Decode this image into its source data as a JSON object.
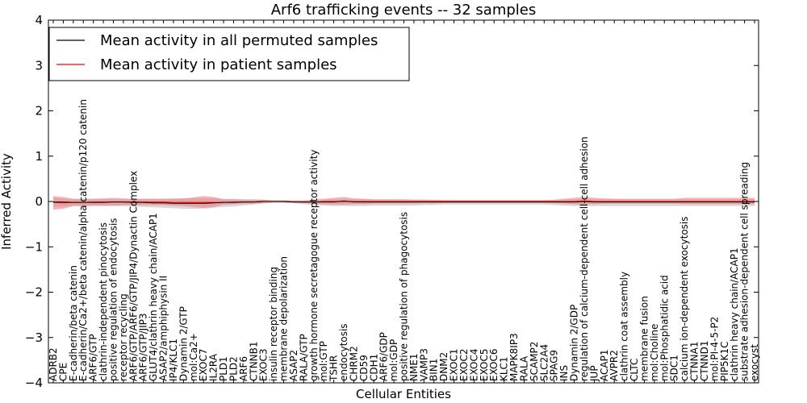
{
  "chart_data": {
    "type": "line",
    "title": "Arf6 trafficking events -- 32 samples",
    "xlabel": "Cellular Entities",
    "ylabel": "Inferred Activity",
    "ylim": [
      -4,
      4
    ],
    "yticks": [
      -4,
      -3,
      -2,
      -1,
      0,
      1,
      2,
      3,
      4
    ],
    "ytick_labels": [
      "−4",
      "−3",
      "−2",
      "−1",
      "0",
      "1",
      "2",
      "3",
      "4"
    ],
    "grid": false,
    "legend_position": "top-left",
    "colors": {
      "permuted": "#000000",
      "patient": "#ff0000",
      "permuted_band": "#c8c8c8",
      "patient_band": "#f08080"
    },
    "categories": [
      "ADRB2",
      "CPE",
      "E-cadherin/beta catenin",
      "E-cadherin/Ca2+/beta catenin/alpha catenin/p120 catenin",
      "ARF6/GTP",
      "clathrin-independent pinocytosis",
      "positive regulation of endocytosis",
      "receptor recycling",
      "ARF6/GTP/ARF6/GTP/JIP4/Dynactin Complex",
      "ARF6/GTP/JIP3",
      "GLUT4/clathrin heavy chain/ACAP1",
      "ASAP2/amphiphysin II",
      "IP4/KLC1",
      "Dynamin 2/GTP",
      "mol:Ca2+",
      "EXOC7",
      "IL2RA",
      "PLD1",
      "PLD2",
      "ARF6",
      "CTNNB1",
      "EXOC3",
      "insulin receptor binding",
      "membrane depolarization",
      "ASAP2",
      "RALA/GTP",
      "growth hormone secretagogue receptor activity",
      "mol:GTP",
      "TSHR",
      "endocytosis",
      "CHRM2",
      "CD59",
      "CDH1",
      "ARF6/GDP",
      "mol:GDP",
      "positive regulation of phagocytosis",
      "NME1",
      "VAMP3",
      "BIN1",
      "DNM2",
      "EXOC1",
      "EXOC2",
      "EXOC4",
      "EXOC5",
      "EXOC6",
      "KLC1",
      "MAPK8IP3",
      "RALA",
      "SCAMP2",
      "SLC2A4",
      "SPAG9",
      "INS",
      "Dynamin 2/GDP",
      "regulation of calcium-dependent cell-cell adhesion",
      "JUP",
      "ACAP1",
      "AVPR2",
      "clathrin coat assembly",
      "CLTC",
      "membrane fusion",
      "mol:Choline",
      "mol:Phosphatidic acid",
      "SDC1",
      "calcium ion-dependent exocytosis",
      "CTNNA1",
      "CTNND1",
      "mol:PI-4-5-P2",
      "PIP5K1C",
      "clathrin heavy chain/ACAP1",
      "substrate adhesion-dependent cell spreading",
      "exocyst"
    ],
    "series": [
      {
        "name": "Mean activity in all permuted samples",
        "values": [
          -0.01,
          -0.01,
          -0.02,
          -0.02,
          -0.02,
          -0.02,
          -0.01,
          -0.01,
          -0.02,
          -0.02,
          -0.03,
          -0.03,
          -0.04,
          -0.04,
          -0.04,
          -0.04,
          -0.03,
          -0.02,
          -0.02,
          -0.01,
          -0.01,
          0.0,
          0.0,
          0.0,
          -0.01,
          -0.01,
          -0.01,
          -0.01,
          -0.01,
          0.01,
          -0.01,
          -0.01,
          -0.01,
          -0.01,
          -0.01,
          -0.01,
          -0.01,
          -0.01,
          -0.01,
          -0.01,
          -0.01,
          -0.01,
          -0.01,
          -0.01,
          -0.01,
          -0.01,
          -0.01,
          -0.01,
          -0.01,
          -0.01,
          -0.01,
          -0.01,
          -0.01,
          0.0,
          -0.01,
          -0.01,
          -0.01,
          -0.01,
          -0.01,
          -0.01,
          -0.01,
          -0.01,
          -0.01,
          -0.01,
          -0.01,
          -0.01,
          -0.01,
          -0.01,
          -0.01,
          -0.01,
          -0.01
        ],
        "band_upper": [
          0.08,
          0.06,
          0.05,
          0.05,
          0.05,
          0.05,
          0.05,
          0.05,
          0.05,
          0.06,
          0.06,
          0.06,
          0.07,
          0.07,
          0.07,
          0.07,
          0.07,
          0.06,
          0.06,
          0.05,
          0.05,
          0.04,
          0.03,
          0.03,
          0.03,
          0.03,
          0.04,
          0.04,
          0.05,
          0.05,
          0.05,
          0.05,
          0.04,
          0.04,
          0.04,
          0.04,
          0.04,
          0.04,
          0.03,
          0.03,
          0.03,
          0.03,
          0.03,
          0.03,
          0.03,
          0.03,
          0.03,
          0.03,
          0.03,
          0.03,
          0.03,
          0.04,
          0.05,
          0.06,
          0.05,
          0.05,
          0.05,
          0.05,
          0.05,
          0.05,
          0.05,
          0.05,
          0.05,
          0.05,
          0.05,
          0.05,
          0.05,
          0.05,
          0.05,
          0.05,
          0.05
        ],
        "band_lower": [
          -0.12,
          -0.11,
          -0.1,
          -0.1,
          -0.1,
          -0.1,
          -0.1,
          -0.1,
          -0.11,
          -0.12,
          -0.13,
          -0.14,
          -0.15,
          -0.16,
          -0.16,
          -0.16,
          -0.14,
          -0.12,
          -0.11,
          -0.09,
          -0.07,
          -0.04,
          -0.03,
          -0.03,
          -0.04,
          -0.06,
          -0.08,
          -0.09,
          -0.1,
          -0.1,
          -0.1,
          -0.1,
          -0.09,
          -0.09,
          -0.09,
          -0.09,
          -0.09,
          -0.08,
          -0.08,
          -0.07,
          -0.07,
          -0.07,
          -0.07,
          -0.07,
          -0.07,
          -0.07,
          -0.07,
          -0.07,
          -0.07,
          -0.07,
          -0.08,
          -0.09,
          -0.1,
          -0.1,
          -0.1,
          -0.1,
          -0.1,
          -0.1,
          -0.1,
          -0.1,
          -0.1,
          -0.1,
          -0.1,
          -0.1,
          -0.1,
          -0.1,
          -0.1,
          -0.1,
          -0.1,
          -0.1,
          -0.1
        ]
      },
      {
        "name": "Mean activity in patient samples",
        "values": [
          -0.02,
          -0.03,
          -0.02,
          -0.02,
          -0.01,
          -0.01,
          -0.01,
          -0.01,
          -0.01,
          -0.01,
          -0.01,
          -0.01,
          -0.02,
          -0.02,
          -0.02,
          -0.02,
          -0.02,
          -0.02,
          -0.01,
          -0.01,
          -0.01,
          0.0,
          0.0,
          0.0,
          -0.01,
          -0.01,
          -0.01,
          0.0,
          0.0,
          0.0,
          0.0,
          0.0,
          0.0,
          0.0,
          0.0,
          0.0,
          0.0,
          0.0,
          0.0,
          0.0,
          0.0,
          0.0,
          0.0,
          0.0,
          0.0,
          0.0,
          0.0,
          0.0,
          0.0,
          0.0,
          0.0,
          0.0,
          0.0,
          0.01,
          0.0,
          0.0,
          0.0,
          0.0,
          0.0,
          0.0,
          0.0,
          0.0,
          0.0,
          0.0,
          0.0,
          0.0,
          0.0,
          0.0,
          0.0,
          0.0,
          0.0
        ],
        "band_upper": [
          0.12,
          0.1,
          0.06,
          0.06,
          0.06,
          0.07,
          0.08,
          0.07,
          0.06,
          0.06,
          0.06,
          0.06,
          0.06,
          0.07,
          0.09,
          0.12,
          0.1,
          0.05,
          0.05,
          0.04,
          0.04,
          0.04,
          0.02,
          0.02,
          0.02,
          0.02,
          0.04,
          0.06,
          0.08,
          0.1,
          0.07,
          0.06,
          0.05,
          0.05,
          0.05,
          0.05,
          0.04,
          0.04,
          0.04,
          0.03,
          0.03,
          0.03,
          0.03,
          0.03,
          0.03,
          0.03,
          0.03,
          0.03,
          0.03,
          0.03,
          0.04,
          0.06,
          0.08,
          0.1,
          0.08,
          0.07,
          0.06,
          0.06,
          0.06,
          0.06,
          0.06,
          0.06,
          0.06,
          0.08,
          0.08,
          0.08,
          0.08,
          0.08,
          0.08,
          0.08,
          0.08
        ],
        "band_lower": [
          -0.18,
          -0.16,
          -0.1,
          -0.1,
          -0.09,
          -0.09,
          -0.09,
          -0.08,
          -0.08,
          -0.08,
          -0.08,
          -0.08,
          -0.09,
          -0.1,
          -0.12,
          -0.14,
          -0.12,
          -0.07,
          -0.06,
          -0.05,
          -0.05,
          -0.04,
          -0.02,
          -0.02,
          -0.02,
          -0.03,
          -0.05,
          -0.06,
          -0.07,
          -0.07,
          -0.06,
          -0.06,
          -0.05,
          -0.05,
          -0.05,
          -0.05,
          -0.05,
          -0.04,
          -0.04,
          -0.03,
          -0.03,
          -0.03,
          -0.03,
          -0.03,
          -0.03,
          -0.03,
          -0.03,
          -0.03,
          -0.03,
          -0.03,
          -0.04,
          -0.05,
          -0.06,
          -0.06,
          -0.06,
          -0.05,
          -0.05,
          -0.05,
          -0.05,
          -0.05,
          -0.05,
          -0.05,
          -0.05,
          -0.06,
          -0.06,
          -0.06,
          -0.06,
          -0.06,
          -0.06,
          -0.06,
          -0.06
        ]
      }
    ]
  }
}
